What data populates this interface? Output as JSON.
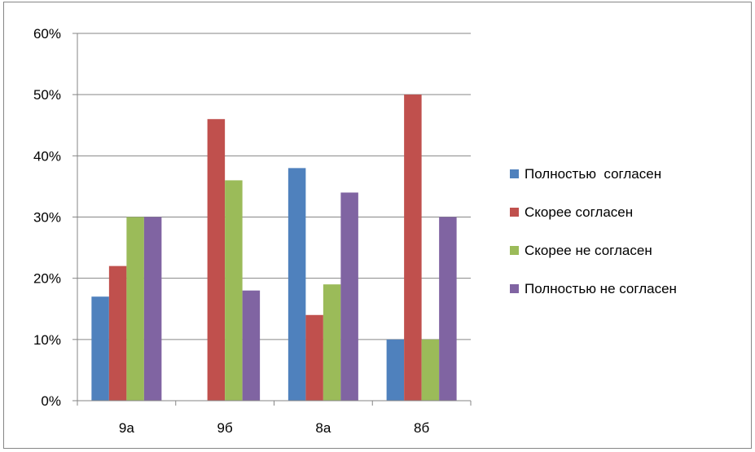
{
  "chart_data": {
    "type": "bar",
    "categories": [
      "9а",
      "9б",
      "8а",
      "8б"
    ],
    "series": [
      {
        "name": "Полностью  согласен",
        "color": "#4F81BD",
        "values": [
          17,
          0,
          38,
          10
        ]
      },
      {
        "name": "Скорее согласен",
        "color": "#C0504D",
        "values": [
          22,
          46,
          14,
          50
        ]
      },
      {
        "name": "Скорее не согласен",
        "color": "#9BBB59",
        "values": [
          30,
          36,
          19,
          10
        ]
      },
      {
        "name": "Полностью не согласен",
        "color": "#8064A2",
        "values": [
          30,
          18,
          34,
          30
        ]
      }
    ],
    "ylim": [
      0,
      60
    ],
    "yticks": [
      "0%",
      "10%",
      "20%",
      "30%",
      "40%",
      "50%",
      "60%"
    ],
    "grid": true,
    "legend": "right"
  }
}
